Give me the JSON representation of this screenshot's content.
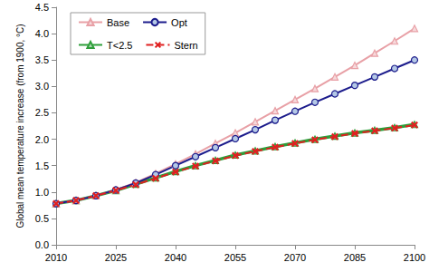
{
  "chart_data": {
    "type": "line",
    "y_label": "Global mean temperature increase (from 1900, °C)",
    "x": [
      2010,
      2015,
      2020,
      2025,
      2030,
      2035,
      2040,
      2045,
      2050,
      2055,
      2060,
      2065,
      2070,
      2075,
      2080,
      2085,
      2090,
      2095,
      2100
    ],
    "series": [
      {
        "name": "Base",
        "color": "#e8a0a6",
        "marker": "triangle",
        "line_style": "solid",
        "values": [
          0.78,
          0.84,
          0.93,
          1.04,
          1.18,
          1.35,
          1.53,
          1.72,
          1.92,
          2.12,
          2.33,
          2.54,
          2.75,
          2.96,
          3.18,
          3.4,
          3.63,
          3.86,
          4.1
        ]
      },
      {
        "name": "Opt",
        "color": "#1c1c8c",
        "marker": "circle",
        "line_style": "solid",
        "values": [
          0.78,
          0.84,
          0.93,
          1.04,
          1.17,
          1.33,
          1.5,
          1.67,
          1.84,
          2.01,
          2.18,
          2.36,
          2.53,
          2.7,
          2.86,
          3.02,
          3.18,
          3.34,
          3.5
        ]
      },
      {
        "name": "T<2.5",
        "color": "#2e9e3a",
        "marker": "triangle",
        "line_style": "solid",
        "values": [
          0.78,
          0.84,
          0.93,
          1.03,
          1.15,
          1.27,
          1.39,
          1.5,
          1.6,
          1.7,
          1.78,
          1.86,
          1.93,
          2.0,
          2.06,
          2.12,
          2.17,
          2.22,
          2.28
        ]
      },
      {
        "name": "Stern",
        "color": "#e02020",
        "marker": "x",
        "line_style": "dashed",
        "values": [
          0.78,
          0.84,
          0.93,
          1.03,
          1.14,
          1.26,
          1.38,
          1.49,
          1.59,
          1.69,
          1.77,
          1.85,
          1.92,
          1.99,
          2.05,
          2.11,
          2.16,
          2.21,
          2.27
        ]
      }
    ],
    "xlim": [
      2010,
      2100
    ],
    "xticks": [
      2010,
      2025,
      2040,
      2055,
      2070,
      2085,
      2100
    ],
    "ylim": [
      0,
      4.5
    ],
    "yticks": [
      {
        "value": 0,
        "label": "0.0"
      },
      {
        "value": 0.5,
        "label": "0.5"
      },
      {
        "value": 1,
        "label": "1.0"
      },
      {
        "value": 1.5,
        "label": "1.5"
      },
      {
        "value": 2,
        "label": "2.0"
      },
      {
        "value": 2.5,
        "label": "2.5"
      },
      {
        "value": 3,
        "label": "3.0"
      },
      {
        "value": 3.5,
        "label": "3.5"
      },
      {
        "value": 4,
        "label": "4.0"
      },
      {
        "value": 4.5,
        "label": "4.5"
      }
    ],
    "grid": false,
    "legend": "upper left"
  }
}
